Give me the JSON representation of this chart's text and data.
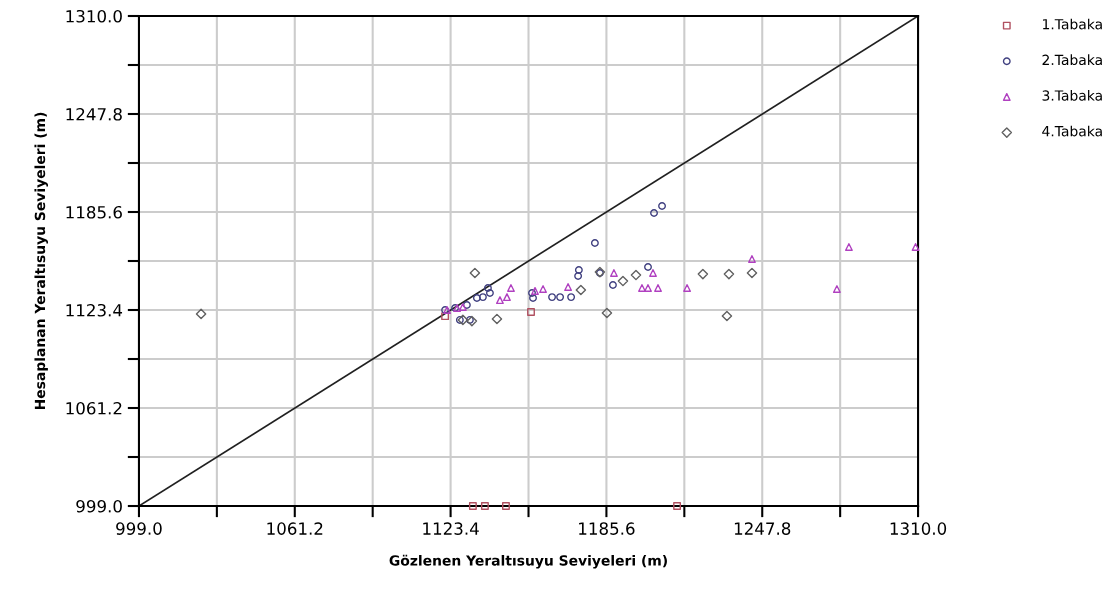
{
  "chart_data": {
    "type": "scatter",
    "xlabel": "Gözlenen Yeraltısuyu Seviyeleri (m)",
    "ylabel": "Hesaplanan Yeraltısuyu Seviyeleri (m)",
    "xlim": [
      999.0,
      1310.0
    ],
    "ylim": [
      999.0,
      1310.0
    ],
    "xticks": [
      {
        "value": 999.0,
        "label": "999.0"
      },
      {
        "value": 1030.1,
        "label": null
      },
      {
        "value": 1061.2,
        "label": "1061.2"
      },
      {
        "value": 1092.3,
        "label": null
      },
      {
        "value": 1123.4,
        "label": "1123.4"
      },
      {
        "value": 1154.5,
        "label": null
      },
      {
        "value": 1185.6,
        "label": "1185.6"
      },
      {
        "value": 1216.7,
        "label": null
      },
      {
        "value": 1247.8,
        "label": "1247.8"
      },
      {
        "value": 1278.9,
        "label": null
      },
      {
        "value": 1310.0,
        "label": "1310.0"
      }
    ],
    "yticks": [
      {
        "value": 999.0,
        "label": "999.0"
      },
      {
        "value": 1030.1,
        "label": null
      },
      {
        "value": 1061.2,
        "label": "1061.2"
      },
      {
        "value": 1092.3,
        "label": null
      },
      {
        "value": 1123.4,
        "label": "1123.4"
      },
      {
        "value": 1154.5,
        "label": null
      },
      {
        "value": 1185.6,
        "label": "1185.6"
      },
      {
        "value": 1216.7,
        "label": null
      },
      {
        "value": 1247.8,
        "label": "1247.8"
      },
      {
        "value": 1278.9,
        "label": null
      },
      {
        "value": 1310.0,
        "label": "1310.0"
      }
    ],
    "grid": true,
    "legend": "top right",
    "series": [
      {
        "type": "line",
        "color": "#202020",
        "marker": "none",
        "x": [
          999.0,
          1310.0
        ],
        "values": [
          999.0,
          1310.0
        ]
      },
      {
        "name": "1.Tabaka",
        "color": "#b05060",
        "marker": "square",
        "x": [
          1132.3,
          1137.1,
          1145.5,
          1213.8,
          1155.5,
          1121.2
        ],
        "values": [
          999.0,
          999.0,
          999.0,
          999.0,
          1122.1,
          1119.5
        ]
      },
      {
        "name": "2.Tabaka",
        "color": "#404080",
        "marker": "circle",
        "x": [
          1204.6,
          1207.8,
          1181.0,
          1174.6,
          1174.3,
          1183.0,
          1188.2,
          1202.2,
          1163.9,
          1167.1,
          1171.5,
          1156.3,
          1155.9,
          1138.3,
          1139.1,
          1136.3,
          1133.9,
          1129.9,
          1127.1,
          1131.1,
          1121.2,
          1125.2
        ],
        "values": [
          1185.0,
          1189.4,
          1165.9,
          1148.8,
          1145.0,
          1146.9,
          1139.3,
          1150.7,
          1131.6,
          1131.6,
          1131.6,
          1131.0,
          1134.2,
          1137.4,
          1134.2,
          1131.6,
          1131.0,
          1126.6,
          1117.1,
          1117.1,
          1123.4,
          1124.7
        ]
      },
      {
        "name": "3.Tabaka",
        "color": "#b040c0",
        "marker": "triangle",
        "x": [
          1147.5,
          1143.1,
          1145.9,
          1157.1,
          1160.3,
          1170.3,
          1188.6,
          1204.2,
          1199.8,
          1202.2,
          1206.2,
          1217.8,
          1126.0,
          1128.3,
          1122.0,
          1243.7,
          1282.4,
          1277.6,
          1309.0
        ],
        "values": [
          1137.4,
          1129.7,
          1131.6,
          1135.5,
          1136.7,
          1138.0,
          1146.9,
          1146.9,
          1137.4,
          1137.4,
          1137.4,
          1137.4,
          1124.7,
          1125.3,
          1123.4,
          1155.8,
          1163.4,
          1136.7,
          1163.4
        ]
      },
      {
        "name": "4.Tabaka",
        "color": "#606060",
        "marker": "diamond",
        "x": [
          1133.1,
          1141.9,
          1175.4,
          1183.0,
          1197.4,
          1192.2,
          1224.1,
          1234.5,
          1185.8,
          1233.7,
          1128.3,
          1131.9,
          1243.7,
          1023.8
        ],
        "values": [
          1146.9,
          1117.7,
          1136.1,
          1147.5,
          1145.6,
          1141.8,
          1146.2,
          1146.2,
          1121.5,
          1119.6,
          1117.1,
          1116.4,
          1146.9,
          1120.9
        ]
      }
    ]
  }
}
